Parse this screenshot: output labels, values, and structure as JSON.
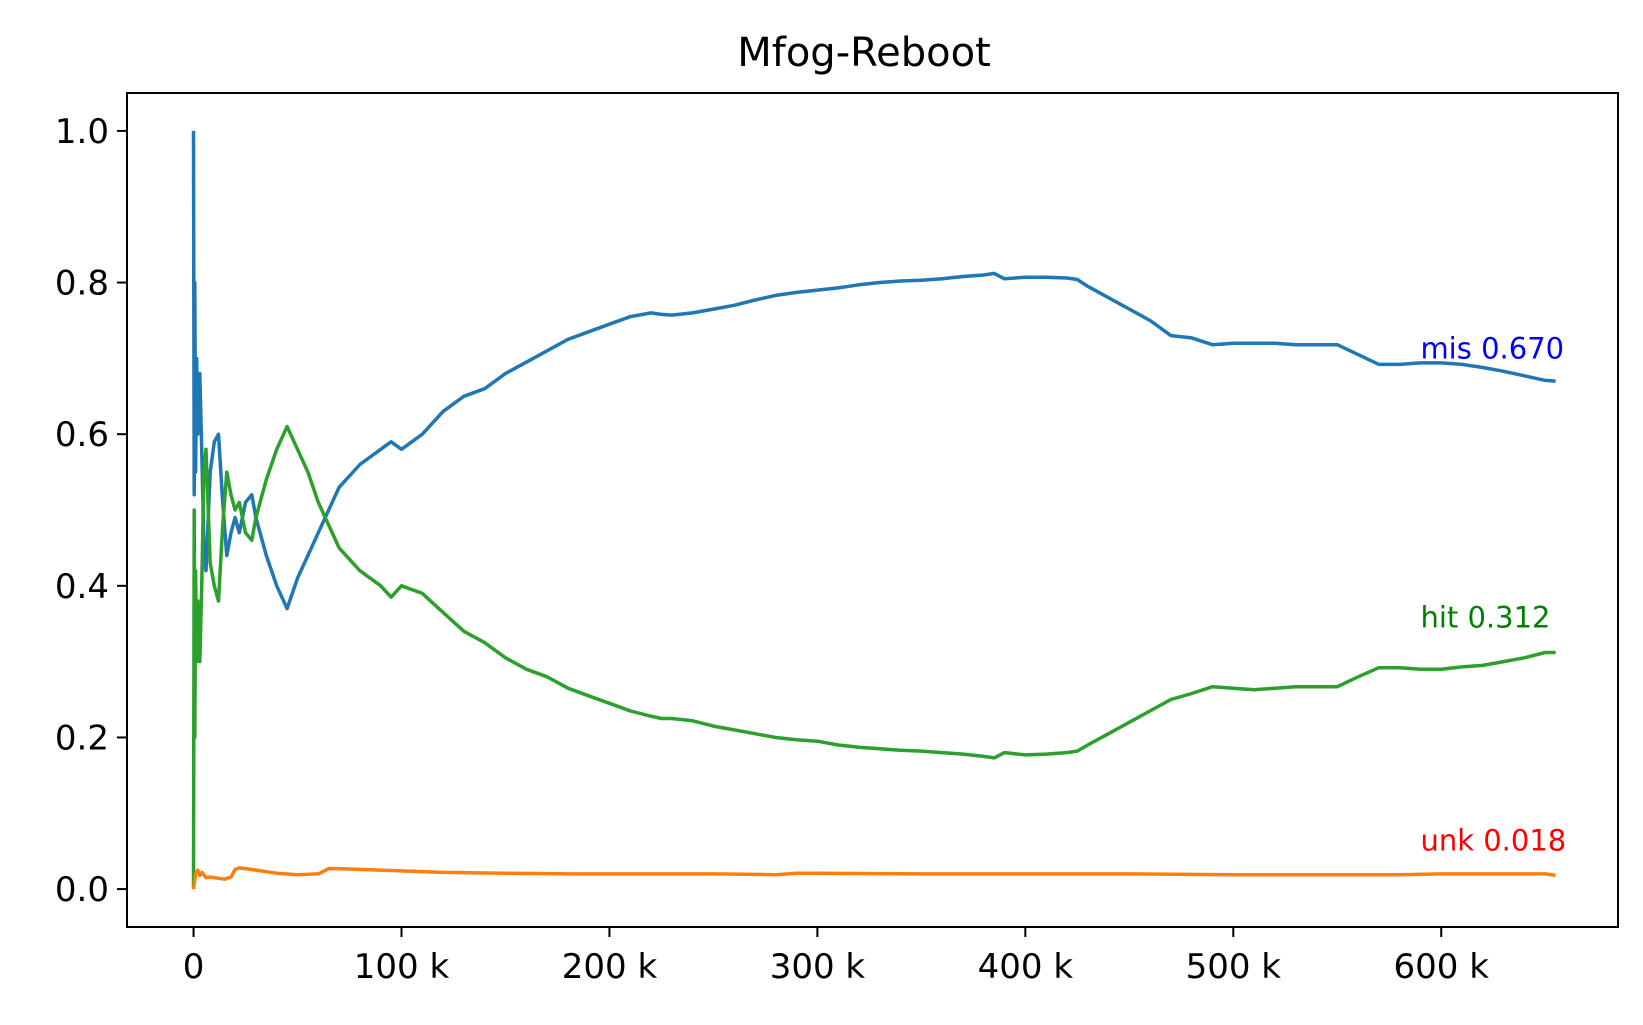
{
  "chart_data": {
    "type": "line",
    "title": "Mfog-Reboot",
    "xlabel": "",
    "ylabel": "",
    "xlim": [
      -32000,
      685000
    ],
    "ylim": [
      -0.05,
      1.05
    ],
    "grid": false,
    "x_ticks": [
      {
        "value": 0,
        "label": "0"
      },
      {
        "value": 100000,
        "label": "100 k"
      },
      {
        "value": 200000,
        "label": "200 k"
      },
      {
        "value": 300000,
        "label": "300 k"
      },
      {
        "value": 400000,
        "label": "400 k"
      },
      {
        "value": 500000,
        "label": "500 k"
      },
      {
        "value": 600000,
        "label": "600 k"
      }
    ],
    "y_ticks": [
      {
        "value": 0.0,
        "label": "0.0"
      },
      {
        "value": 0.2,
        "label": "0.2"
      },
      {
        "value": 0.4,
        "label": "0.4"
      },
      {
        "value": 0.6,
        "label": "0.6"
      },
      {
        "value": 0.8,
        "label": "0.8"
      },
      {
        "value": 1.0,
        "label": "1.0"
      }
    ],
    "series": [
      {
        "name": "mis",
        "color": "#1f77b4",
        "x": [
          0,
          300,
          600,
          1000,
          1500,
          2000,
          3000,
          4000,
          5000,
          6000,
          8000,
          10000,
          12000,
          14000,
          16000,
          18000,
          20000,
          22000,
          25000,
          28000,
          30000,
          35000,
          40000,
          45000,
          50000,
          55000,
          60000,
          70000,
          80000,
          90000,
          95000,
          100000,
          110000,
          120000,
          130000,
          140000,
          150000,
          160000,
          170000,
          180000,
          190000,
          200000,
          210000,
          220000,
          225000,
          230000,
          240000,
          250000,
          260000,
          270000,
          280000,
          290000,
          300000,
          310000,
          320000,
          330000,
          340000,
          350000,
          360000,
          370000,
          380000,
          385000,
          390000,
          400000,
          410000,
          420000,
          425000,
          430000,
          440000,
          450000,
          460000,
          470000,
          480000,
          490000,
          500000,
          510000,
          520000,
          530000,
          540000,
          550000,
          560000,
          570000,
          580000,
          590000,
          600000,
          610000,
          620000,
          630000,
          640000,
          650000,
          655000
        ],
        "values": [
          1.0,
          0.52,
          0.8,
          0.55,
          0.7,
          0.6,
          0.68,
          0.57,
          0.45,
          0.42,
          0.55,
          0.59,
          0.6,
          0.51,
          0.44,
          0.47,
          0.49,
          0.47,
          0.51,
          0.52,
          0.49,
          0.44,
          0.4,
          0.37,
          0.41,
          0.44,
          0.47,
          0.53,
          0.56,
          0.58,
          0.59,
          0.58,
          0.6,
          0.63,
          0.65,
          0.66,
          0.68,
          0.695,
          0.71,
          0.725,
          0.735,
          0.745,
          0.755,
          0.76,
          0.758,
          0.757,
          0.76,
          0.765,
          0.77,
          0.777,
          0.783,
          0.787,
          0.79,
          0.793,
          0.797,
          0.8,
          0.802,
          0.803,
          0.805,
          0.808,
          0.81,
          0.812,
          0.805,
          0.807,
          0.807,
          0.806,
          0.804,
          0.795,
          0.78,
          0.765,
          0.75,
          0.73,
          0.727,
          0.718,
          0.72,
          0.72,
          0.72,
          0.718,
          0.718,
          0.718,
          0.705,
          0.692,
          0.692,
          0.694,
          0.694,
          0.692,
          0.688,
          0.683,
          0.677,
          0.671,
          0.67
        ]
      },
      {
        "name": "hit",
        "color": "#2ca02c",
        "x": [
          0,
          300,
          600,
          1000,
          1500,
          2000,
          3000,
          4000,
          5000,
          6000,
          8000,
          10000,
          12000,
          14000,
          16000,
          18000,
          20000,
          22000,
          25000,
          28000,
          30000,
          35000,
          40000,
          45000,
          50000,
          55000,
          60000,
          70000,
          80000,
          90000,
          95000,
          100000,
          110000,
          120000,
          130000,
          140000,
          150000,
          160000,
          170000,
          180000,
          190000,
          200000,
          210000,
          220000,
          225000,
          230000,
          240000,
          250000,
          260000,
          270000,
          280000,
          290000,
          300000,
          310000,
          320000,
          330000,
          340000,
          350000,
          360000,
          370000,
          380000,
          385000,
          390000,
          400000,
          410000,
          420000,
          425000,
          430000,
          440000,
          450000,
          460000,
          470000,
          480000,
          490000,
          500000,
          510000,
          520000,
          530000,
          540000,
          550000,
          560000,
          570000,
          580000,
          590000,
          600000,
          610000,
          620000,
          630000,
          640000,
          650000,
          655000
        ],
        "values": [
          0.0,
          0.5,
          0.2,
          0.42,
          0.3,
          0.38,
          0.3,
          0.41,
          0.55,
          0.58,
          0.43,
          0.4,
          0.38,
          0.48,
          0.55,
          0.52,
          0.5,
          0.51,
          0.47,
          0.46,
          0.49,
          0.54,
          0.58,
          0.61,
          0.58,
          0.55,
          0.51,
          0.45,
          0.42,
          0.4,
          0.385,
          0.4,
          0.39,
          0.365,
          0.34,
          0.325,
          0.305,
          0.29,
          0.28,
          0.265,
          0.255,
          0.245,
          0.235,
          0.228,
          0.225,
          0.225,
          0.222,
          0.215,
          0.21,
          0.205,
          0.2,
          0.197,
          0.195,
          0.19,
          0.187,
          0.185,
          0.183,
          0.182,
          0.18,
          0.178,
          0.175,
          0.173,
          0.18,
          0.177,
          0.178,
          0.18,
          0.182,
          0.19,
          0.205,
          0.22,
          0.235,
          0.25,
          0.258,
          0.267,
          0.265,
          0.263,
          0.265,
          0.267,
          0.267,
          0.267,
          0.28,
          0.292,
          0.292,
          0.29,
          0.29,
          0.293,
          0.295,
          0.3,
          0.305,
          0.312,
          0.312
        ]
      },
      {
        "name": "unk",
        "color": "#ff7f0e",
        "x": [
          0,
          1000,
          2000,
          3000,
          4000,
          6000,
          8000,
          10000,
          15000,
          18000,
          20000,
          22000,
          25000,
          30000,
          40000,
          50000,
          60000,
          65000,
          70000,
          80000,
          100000,
          120000,
          150000,
          180000,
          200000,
          250000,
          280000,
          290000,
          300000,
          350000,
          400000,
          450000,
          500000,
          550000,
          580000,
          600000,
          650000,
          655000
        ],
        "values": [
          0.0,
          0.02,
          0.025,
          0.018,
          0.022,
          0.015,
          0.016,
          0.015,
          0.013,
          0.016,
          0.026,
          0.028,
          0.027,
          0.025,
          0.021,
          0.019,
          0.02,
          0.027,
          0.027,
          0.026,
          0.024,
          0.022,
          0.021,
          0.02,
          0.02,
          0.02,
          0.019,
          0.021,
          0.021,
          0.02,
          0.02,
          0.02,
          0.019,
          0.019,
          0.019,
          0.02,
          0.02,
          0.018
        ]
      }
    ],
    "annotations": [
      {
        "text": "mis 0.670",
        "color": "#0000ff",
        "x": 590000,
        "y": 0.7
      },
      {
        "text": "hit 0.312",
        "color": "#008000",
        "x": 590000,
        "y": 0.345
      },
      {
        "text": "unk 0.018",
        "color": "#ff0000",
        "x": 590000,
        "y": 0.051
      }
    ]
  }
}
